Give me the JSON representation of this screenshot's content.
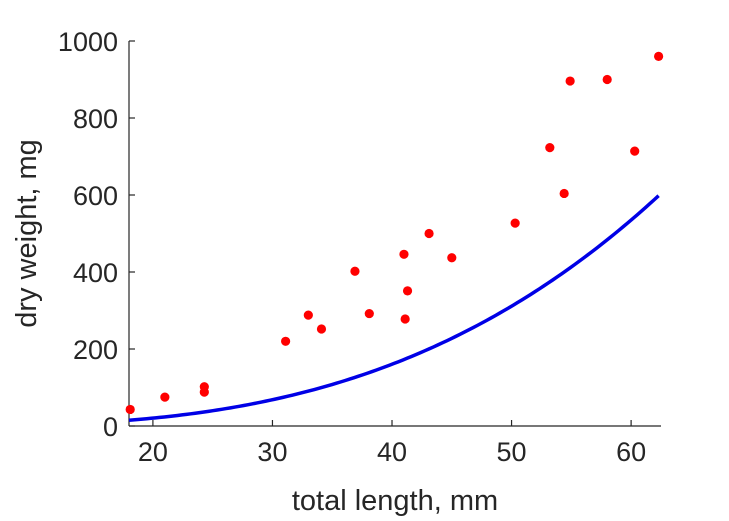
{
  "chart_data": {
    "type": "scatter",
    "xlabel": "total length, mm",
    "ylabel": "dry weight, mg",
    "xlim": [
      18,
      62.5
    ],
    "ylim": [
      0,
      1000
    ],
    "xticks": [
      20,
      30,
      40,
      50,
      60
    ],
    "yticks": [
      0,
      200,
      400,
      600,
      800,
      1000
    ],
    "grid": false,
    "box": false,
    "series": [
      {
        "type": "scatter",
        "color": "#ff0000",
        "points": [
          [
            18.1,
            43
          ],
          [
            21.0,
            75
          ],
          [
            24.3,
            102
          ],
          [
            24.3,
            88
          ],
          [
            31.1,
            220
          ],
          [
            33.0,
            288
          ],
          [
            34.1,
            252
          ],
          [
            36.9,
            402
          ],
          [
            38.1,
            292
          ],
          [
            41.0,
            446
          ],
          [
            41.1,
            278
          ],
          [
            41.3,
            351
          ],
          [
            43.1,
            500
          ],
          [
            45.0,
            437
          ],
          [
            50.3,
            527
          ],
          [
            53.2,
            723
          ],
          [
            54.4,
            604
          ],
          [
            54.9,
            896
          ],
          [
            58.0,
            900
          ],
          [
            60.3,
            714
          ],
          [
            62.3,
            960
          ]
        ]
      },
      {
        "type": "line",
        "color": "#0000e6",
        "model": "power",
        "coefficient": 0.0028,
        "exponent": 2.97,
        "x_range": [
          18,
          62.3
        ]
      }
    ]
  }
}
